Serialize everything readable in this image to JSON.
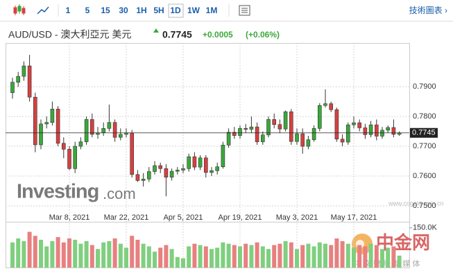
{
  "toolbar": {
    "intervals": [
      "1",
      "5",
      "15",
      "30",
      "1H",
      "5H",
      "1D",
      "1W",
      "1M"
    ],
    "link": "技術圖表 ›"
  },
  "header": {
    "title": "AUD/USD - 澳大利亞元 美元",
    "change": "+0.0005",
    "change_percent": "(+0.06%)"
  },
  "watermark": {
    "brand": "Investing",
    "suffix": ".com",
    "site_name": "中金网",
    "site_url": "www.cngold.com.cn",
    "site_slogan": "中 文 财 经 新 媒 体"
  },
  "chart_data": {
    "type": "candlestick",
    "x": [
      "2021-02-22",
      "2021-02-23",
      "2021-02-24",
      "2021-02-25",
      "2021-02-26",
      "2021-03-01",
      "2021-03-02",
      "2021-03-03",
      "2021-03-04",
      "2021-03-05",
      "2021-03-08",
      "2021-03-09",
      "2021-03-10",
      "2021-03-11",
      "2021-03-12",
      "2021-03-15",
      "2021-03-16",
      "2021-03-17",
      "2021-03-18",
      "2021-03-19",
      "2021-03-22",
      "2021-03-23",
      "2021-03-24",
      "2021-03-25",
      "2021-03-26",
      "2021-03-29",
      "2021-03-30",
      "2021-03-31",
      "2021-04-01",
      "2021-04-02",
      "2021-04-05",
      "2021-04-06",
      "2021-04-07",
      "2021-04-08",
      "2021-04-09",
      "2021-04-12",
      "2021-04-13",
      "2021-04-14",
      "2021-04-15",
      "2021-04-16",
      "2021-04-19",
      "2021-04-20",
      "2021-04-21",
      "2021-04-22",
      "2021-04-23",
      "2021-04-26",
      "2021-04-27",
      "2021-04-28",
      "2021-04-29",
      "2021-04-30",
      "2021-05-03",
      "2021-05-04",
      "2021-05-05",
      "2021-05-06",
      "2021-05-07",
      "2021-05-10",
      "2021-05-11",
      "2021-05-12",
      "2021-05-13",
      "2021-05-14",
      "2021-05-17",
      "2021-05-18",
      "2021-05-19",
      "2021-05-20",
      "2021-05-21",
      "2021-05-24",
      "2021-05-25",
      "2021-05-26",
      "2021-05-27"
    ],
    "open": [
      0.788,
      0.7915,
      0.7935,
      0.797,
      0.7865,
      0.7705,
      0.7775,
      0.778,
      0.7825,
      0.771,
      0.769,
      0.7625,
      0.77,
      0.7715,
      0.779,
      0.774,
      0.7745,
      0.776,
      0.778,
      0.773,
      0.774,
      0.7745,
      0.7605,
      0.7585,
      0.759,
      0.7615,
      0.7635,
      0.7625,
      0.7596,
      0.7616,
      0.762,
      0.7625,
      0.7665,
      0.763,
      0.7661,
      0.7612,
      0.7618,
      0.7631,
      0.7704,
      0.7747,
      0.7736,
      0.776,
      0.7757,
      0.7765,
      0.7715,
      0.7738,
      0.779,
      0.7773,
      0.7758,
      0.7816,
      0.7716,
      0.7742,
      0.77,
      0.7722,
      0.776,
      0.7837,
      0.7843,
      0.7823,
      0.7724,
      0.7714,
      0.7772,
      0.7779,
      0.7762,
      0.7739,
      0.7772,
      0.7734,
      0.7754,
      0.7763,
      0.774
    ],
    "high": [
      0.793,
      0.795,
      0.7985,
      0.8007,
      0.788,
      0.779,
      0.78,
      0.785,
      0.7835,
      0.773,
      0.77,
      0.7715,
      0.773,
      0.78,
      0.781,
      0.7765,
      0.778,
      0.784,
      0.779,
      0.776,
      0.776,
      0.7755,
      0.762,
      0.761,
      0.763,
      0.765,
      0.7645,
      0.764,
      0.7625,
      0.763,
      0.764,
      0.7675,
      0.768,
      0.767,
      0.767,
      0.763,
      0.7645,
      0.7715,
      0.776,
      0.7765,
      0.777,
      0.7775,
      0.78,
      0.778,
      0.775,
      0.78,
      0.781,
      0.779,
      0.782,
      0.7825,
      0.776,
      0.776,
      0.7735,
      0.777,
      0.7845,
      0.7891,
      0.785,
      0.783,
      0.774,
      0.778,
      0.78,
      0.779,
      0.7775,
      0.7785,
      0.779,
      0.7765,
      0.777,
      0.779,
      0.775
    ],
    "low": [
      0.786,
      0.79,
      0.792,
      0.785,
      0.768,
      0.769,
      0.776,
      0.777,
      0.77,
      0.766,
      0.762,
      0.761,
      0.769,
      0.7705,
      0.773,
      0.7725,
      0.7735,
      0.775,
      0.7715,
      0.772,
      0.773,
      0.7595,
      0.758,
      0.7565,
      0.758,
      0.7605,
      0.761,
      0.7532,
      0.7585,
      0.7605,
      0.761,
      0.7615,
      0.762,
      0.762,
      0.7595,
      0.76,
      0.7605,
      0.7625,
      0.7695,
      0.7725,
      0.7725,
      0.7745,
      0.7745,
      0.7705,
      0.7705,
      0.773,
      0.776,
      0.7745,
      0.775,
      0.7705,
      0.7705,
      0.7675,
      0.769,
      0.7715,
      0.775,
      0.783,
      0.7815,
      0.7715,
      0.77,
      0.7705,
      0.776,
      0.775,
      0.7725,
      0.773,
      0.772,
      0.7725,
      0.7745,
      0.773,
      0.7735
    ],
    "close": [
      0.7915,
      0.7935,
      0.797,
      0.7865,
      0.7705,
      0.7775,
      0.778,
      0.7825,
      0.771,
      0.769,
      0.7625,
      0.77,
      0.7715,
      0.779,
      0.774,
      0.7745,
      0.776,
      0.778,
      0.773,
      0.774,
      0.7745,
      0.7605,
      0.7585,
      0.759,
      0.7615,
      0.7635,
      0.7625,
      0.7596,
      0.7616,
      0.762,
      0.7625,
      0.7665,
      0.763,
      0.7661,
      0.7612,
      0.7618,
      0.7631,
      0.7704,
      0.7747,
      0.7736,
      0.776,
      0.7757,
      0.7765,
      0.7715,
      0.7738,
      0.779,
      0.7773,
      0.7758,
      0.7816,
      0.7716,
      0.7742,
      0.77,
      0.7722,
      0.776,
      0.7837,
      0.7843,
      0.7823,
      0.7724,
      0.7714,
      0.7772,
      0.7779,
      0.7762,
      0.7739,
      0.7772,
      0.7734,
      0.7754,
      0.7763,
      0.774,
      0.7745
    ],
    "up_color": "#3aa83a",
    "down_color": "#d64040",
    "ylim": [
      0.7458,
      0.8047
    ],
    "yticks": [
      {
        "value": 0.75,
        "label": "0.7500"
      },
      {
        "value": 0.76,
        "label": "0.7600"
      },
      {
        "value": 0.77,
        "label": "0.7700"
      },
      {
        "value": 0.78,
        "label": "0.7800"
      },
      {
        "value": 0.79,
        "label": "0.7900"
      }
    ],
    "xticks": [
      {
        "value": "2021-03-08",
        "label": "Mar 8, 2021"
      },
      {
        "value": "2021-03-22",
        "label": "Mar 22, 2021"
      },
      {
        "value": "2021-04-05",
        "label": "Apr 5, 2021"
      },
      {
        "value": "2021-04-19",
        "label": "Apr 19, 2021"
      },
      {
        "value": "2021-05-03",
        "label": "May 3, 2021"
      },
      {
        "value": "2021-05-17",
        "label": "May 17, 2021"
      }
    ],
    "current_price": {
      "value": 0.7745,
      "label": "0.7745"
    },
    "grid": true,
    "volume": {
      "values": [
        95000,
        110000,
        100000,
        135000,
        120000,
        105000,
        80000,
        100000,
        115000,
        95000,
        110000,
        105000,
        90000,
        100000,
        85000,
        70000,
        95000,
        100000,
        110000,
        90000,
        75000,
        120000,
        105000,
        90000,
        80000,
        60000,
        75000,
        85000,
        70000,
        40000,
        35000,
        80000,
        90000,
        85000,
        80000,
        70000,
        75000,
        95000,
        90000,
        85000,
        80000,
        90000,
        85000,
        95000,
        80000,
        70000,
        85000,
        90000,
        100000,
        95000,
        70000,
        85000,
        90000,
        80000,
        95000,
        90000,
        85000,
        110000,
        100000,
        90000,
        75000,
        85000,
        80000,
        90000,
        85000,
        70000,
        75000,
        80000,
        45000
      ],
      "up_color": "#7fcf7f",
      "down_color": "#e88080",
      "ylim": [
        0,
        173000
      ],
      "yticks": [
        {
          "value": 150000,
          "label": "150.0K"
        }
      ]
    }
  }
}
